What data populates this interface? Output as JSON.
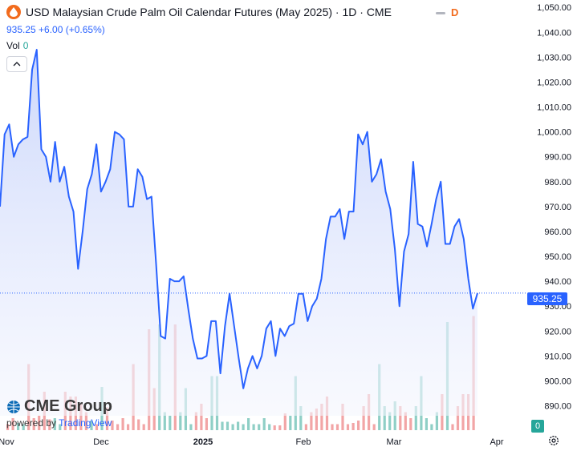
{
  "header": {
    "title": "USD Malaysian Crude Palm Oil Calendar Futures (May 2025) · 1D · CME",
    "status_letter": "D",
    "change": "935.25 +6.00 (+0.65%)",
    "volume_label": "Vol",
    "volume_value": "0"
  },
  "price_label": "935.25",
  "volume_label_tag": "0",
  "logo": {
    "brand": "CME Group",
    "powered_by": "powered by",
    "platform": "TradingView"
  },
  "colors": {
    "line": "#2962ff",
    "area_top": "#c8d4fb",
    "area_bottom": "#f4f6fe",
    "up_volume": "#8fcfc6",
    "down_volume": "#f2a5a6",
    "brand_orange": "#f26b1d"
  },
  "icons": [
    "palm-oil-symbol-icon",
    "chevron-up-icon",
    "cme-globe-icon",
    "gear-icon"
  ],
  "chart_data": {
    "type": "line",
    "title": "USD Malaysian Crude Palm Oil Calendar Futures (May 2025) · 1D · CME",
    "x_tick_labels": [
      "Nov",
      "Dec",
      "2025",
      "Feb",
      "Mar",
      "Apr"
    ],
    "y_tick_labels": [
      "1,050.00",
      "1,040.00",
      "1,030.00",
      "1,020.00",
      "1,010.00",
      "1,000.00",
      "990.00",
      "980.00",
      "970.00",
      "960.00",
      "950.00",
      "940.00",
      "930.00",
      "920.00",
      "910.00",
      "900.00",
      "890.00"
    ],
    "ylim": [
      886,
      1052
    ],
    "grid": false,
    "last_price": 935.25,
    "series": [
      {
        "values": [
          970,
          999,
          1003,
          990,
          995,
          997,
          998,
          1025,
          1033,
          993,
          990,
          980,
          996,
          980,
          986,
          974,
          968,
          945,
          960,
          977,
          983,
          995,
          976,
          980,
          985,
          1000,
          999,
          997,
          970,
          970,
          985,
          982,
          973,
          974,
          947,
          918,
          917,
          941,
          940,
          940,
          942,
          929,
          917,
          909,
          909,
          910,
          924,
          924,
          903,
          922,
          935,
          922,
          909,
          897,
          905,
          910,
          905,
          910,
          921,
          924,
          910,
          921,
          918,
          922,
          923,
          935,
          935,
          924,
          930,
          933,
          941,
          957,
          966,
          966,
          969,
          957,
          968,
          968,
          999,
          995,
          1000,
          980,
          983,
          989,
          976,
          969,
          953,
          930,
          952,
          959,
          988,
          963,
          962,
          954,
          963,
          973,
          980,
          955,
          955,
          962,
          965,
          957,
          941,
          929,
          935.25
        ]
      }
    ],
    "volume": [
      {
        "v": 0,
        "up": true
      },
      {
        "v": 0,
        "up": true
      },
      {
        "v": 0,
        "up": true
      },
      {
        "v": 0,
        "up": true
      },
      {
        "v": 0,
        "up": true
      },
      {
        "v": 0,
        "up": true
      },
      {
        "v": 0,
        "up": true
      },
      {
        "v": 0,
        "up": true
      },
      {
        "v": 26,
        "up": false
      },
      {
        "v": 0,
        "up": true
      },
      {
        "v": 0,
        "up": true
      },
      {
        "v": 0,
        "up": true
      },
      {
        "v": 2,
        "up": true
      },
      {
        "v": 0,
        "up": true
      },
      {
        "v": 0,
        "up": true
      },
      {
        "v": 0,
        "up": true
      },
      {
        "v": 0,
        "up": true
      },
      {
        "v": 0,
        "up": true
      },
      {
        "v": 0,
        "up": true
      },
      {
        "v": 0,
        "up": true
      },
      {
        "v": 0,
        "up": true
      },
      {
        "v": 0,
        "up": true
      },
      {
        "v": 0,
        "up": true
      },
      {
        "v": 0,
        "up": true
      },
      {
        "v": 0,
        "up": true
      },
      {
        "v": 0,
        "up": true
      },
      {
        "v": 0,
        "up": true
      },
      {
        "v": 0,
        "up": true
      },
      {
        "v": 0,
        "up": true
      },
      {
        "v": 0,
        "up": true
      },
      {
        "v": 0,
        "up": true
      },
      {
        "v": 0,
        "up": true
      },
      {
        "v": 0,
        "up": true
      },
      {
        "v": 0,
        "up": true
      },
      {
        "v": 0,
        "up": true
      },
      {
        "v": 0,
        "up": true
      },
      {
        "v": 0,
        "up": true
      },
      {
        "v": 0,
        "up": true
      },
      {
        "v": 0,
        "up": true
      },
      {
        "v": 0,
        "up": true
      },
      {
        "v": 0,
        "up": true
      },
      {
        "v": 0,
        "up": true
      },
      {
        "v": 0,
        "up": true
      },
      {
        "v": 0,
        "up": true
      },
      {
        "v": 0,
        "up": true
      },
      {
        "v": 0,
        "up": true
      },
      {
        "v": 0,
        "up": true
      },
      {
        "v": 0,
        "up": true
      },
      {
        "v": 0,
        "up": true
      },
      {
        "v": 0,
        "up": true
      },
      {
        "v": 0,
        "up": true
      },
      {
        "v": 0,
        "up": true
      },
      {
        "v": 0,
        "up": true
      },
      {
        "v": 0,
        "up": true
      },
      {
        "v": 0,
        "up": true
      },
      {
        "v": 0,
        "up": true
      },
      {
        "v": 0,
        "up": true
      },
      {
        "v": 0,
        "up": true
      },
      {
        "v": 0,
        "up": true
      },
      {
        "v": 0,
        "up": true
      },
      {
        "v": 0,
        "up": true
      },
      {
        "v": 0,
        "up": true
      },
      {
        "v": 0,
        "up": true
      },
      {
        "v": 0,
        "up": true
      },
      {
        "v": 0,
        "up": true
      },
      {
        "v": 0,
        "up": true
      },
      {
        "v": 0,
        "up": true
      },
      {
        "v": 0,
        "up": true
      },
      {
        "v": 0,
        "up": true
      },
      {
        "v": 0,
        "up": true
      },
      {
        "v": 0,
        "up": true
      },
      {
        "v": 0,
        "up": true
      },
      {
        "v": 0,
        "up": true
      },
      {
        "v": 0,
        "up": true
      },
      {
        "v": 0,
        "up": true
      },
      {
        "v": 0,
        "up": true
      },
      {
        "v": 0,
        "up": true
      },
      {
        "v": 0,
        "up": true
      },
      {
        "v": 0,
        "up": true
      },
      {
        "v": 0,
        "up": true
      },
      {
        "v": 0,
        "up": true
      },
      {
        "v": 0,
        "up": true
      },
      {
        "v": 0,
        "up": true
      },
      {
        "v": 0,
        "up": true
      },
      {
        "v": 0,
        "up": true
      },
      {
        "v": 0,
        "up": true
      },
      {
        "v": 0,
        "up": true
      },
      {
        "v": 0,
        "up": true
      },
      {
        "v": 0,
        "up": true
      },
      {
        "v": 0,
        "up": true
      },
      {
        "v": 0,
        "up": true
      },
      {
        "v": 0,
        "up": true
      },
      {
        "v": 0,
        "up": true
      },
      {
        "v": 0,
        "up": true
      },
      {
        "v": 0,
        "up": true
      },
      {
        "v": 0,
        "up": true
      },
      {
        "v": 0,
        "up": true
      },
      {
        "v": 0,
        "up": true
      },
      {
        "v": 0,
        "up": true
      },
      {
        "v": 0,
        "up": true
      },
      {
        "v": 0,
        "up": true
      },
      {
        "v": 0,
        "up": true
      },
      {
        "v": 0,
        "up": true
      },
      {
        "v": 0,
        "up": true
      },
      {
        "v": 0,
        "up": true
      }
    ]
  }
}
